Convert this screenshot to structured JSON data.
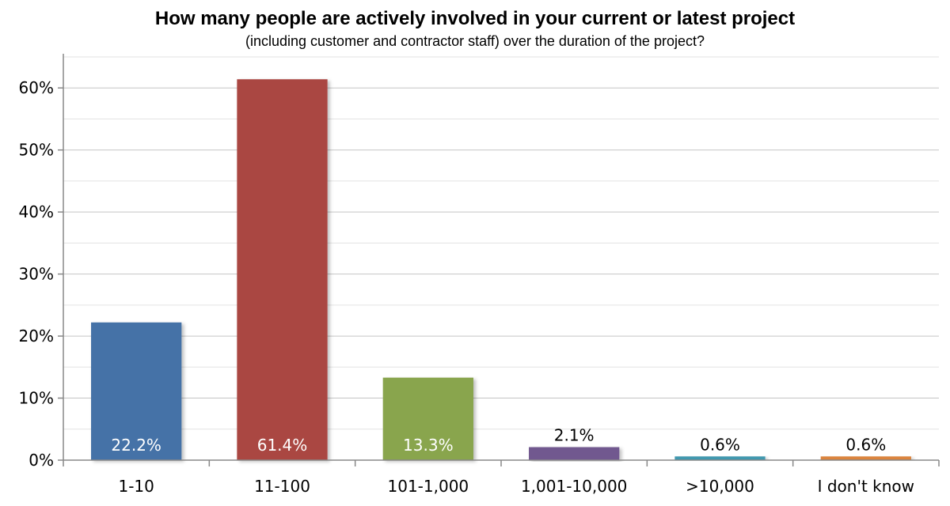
{
  "chart_data": {
    "type": "bar",
    "title": "How many people are actively involved in your current or latest project",
    "subtitle": "(including customer and contractor staff) over the duration of the project?",
    "categories": [
      "1-10",
      "11-100",
      "101-1,000",
      "1,001-10,000",
      ">10,000",
      "I don't know"
    ],
    "values": [
      22.2,
      61.4,
      13.3,
      2.1,
      0.6,
      0.6
    ],
    "data_labels": [
      "22.2%",
      "61.4%",
      "13.3%",
      "2.1%",
      "0.6%",
      "0.6%"
    ],
    "colors": [
      "#4572a7",
      "#aa4643",
      "#89a54e",
      "#71588f",
      "#4198af",
      "#db843d"
    ],
    "label_inside": [
      true,
      true,
      true,
      false,
      false,
      false
    ],
    "ylim": [
      0,
      65
    ],
    "yticks": [
      0,
      10,
      20,
      30,
      40,
      50,
      60
    ],
    "ytick_labels": [
      "0%",
      "10%",
      "20%",
      "30%",
      "40%",
      "50%",
      "60%"
    ],
    "minor_gridlines": true,
    "legend": "none"
  }
}
